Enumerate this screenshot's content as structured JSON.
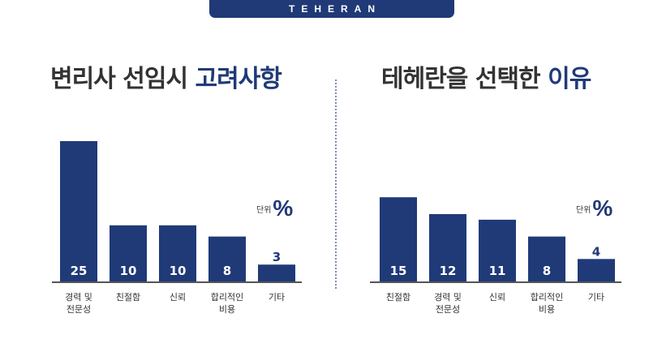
{
  "brand": "TEHERAN",
  "colors": {
    "bar": "#203a78",
    "title_accent": "#203a78",
    "axis": "#555555",
    "text": "#333333"
  },
  "chart_data": [
    {
      "type": "bar",
      "title_main": "변리사 선임시",
      "title_accent": "고려사항",
      "unit_text": "단위",
      "unit_symbol": "%",
      "categories": [
        [
          "경력 및",
          "전문성"
        ],
        [
          "친절함"
        ],
        [
          "신뢰"
        ],
        [
          "합리적인",
          "비용"
        ],
        [
          "기타"
        ]
      ],
      "values": [
        25,
        10,
        10,
        8,
        3
      ],
      "ylim": [
        0,
        25
      ]
    },
    {
      "type": "bar",
      "title_main": "테헤란을 선택한",
      "title_accent": "이유",
      "unit_text": "단위",
      "unit_symbol": "%",
      "categories": [
        [
          "친절함"
        ],
        [
          "경력 및",
          "전문성"
        ],
        [
          "신뢰"
        ],
        [
          "합리적인",
          "비용"
        ],
        [
          "기타"
        ]
      ],
      "values": [
        15,
        12,
        11,
        8,
        4
      ],
      "ylim": [
        0,
        25
      ]
    }
  ]
}
